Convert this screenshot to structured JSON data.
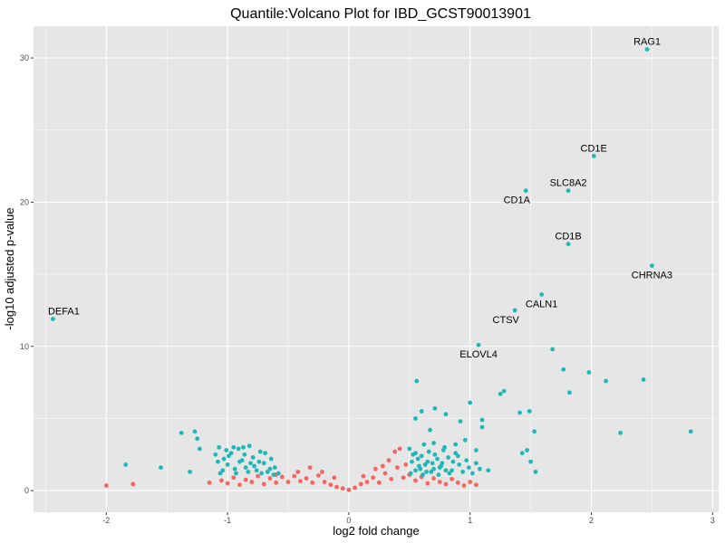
{
  "chart_data": {
    "type": "scatter",
    "title": "Quantile:Volcano Plot for IBD_GCST90013901",
    "xlabel": "log2 fold change",
    "ylabel": "-log10 adjusted p-value",
    "xlim": [
      -2.6,
      3.05
    ],
    "ylim": [
      -1.5,
      32.2
    ],
    "x_ticks": [
      -2,
      -1,
      0,
      1,
      2,
      3
    ],
    "y_ticks": [
      0,
      10,
      20,
      30
    ],
    "grid": true,
    "legend": "none",
    "colors": {
      "significant": "#1fb8b8",
      "not_significant": "#f8645e",
      "panel": "#e6e6e6",
      "grid": "#ffffff"
    },
    "series": [
      {
        "group": "significant",
        "points": [
          [
            2.46,
            30.6
          ],
          [
            2.02,
            23.2
          ],
          [
            1.46,
            20.8
          ],
          [
            1.81,
            20.8
          ],
          [
            1.81,
            17.1
          ],
          [
            2.5,
            15.6
          ],
          [
            1.59,
            13.6
          ],
          [
            1.37,
            12.5
          ],
          [
            1.07,
            10.1
          ],
          [
            -2.44,
            11.9
          ],
          [
            1.68,
            9.8
          ],
          [
            1.77,
            8.4
          ],
          [
            1.98,
            8.2
          ],
          [
            2.12,
            7.6
          ],
          [
            2.43,
            7.7
          ],
          [
            1.82,
            6.8
          ],
          [
            0.56,
            7.6
          ],
          [
            1.28,
            6.9
          ],
          [
            1.25,
            6.7
          ],
          [
            1.0,
            6.1
          ],
          [
            0.8,
            5.3
          ],
          [
            0.71,
            5.7
          ],
          [
            1.41,
            5.4
          ],
          [
            1.49,
            5.5
          ],
          [
            2.82,
            4.1
          ],
          [
            2.24,
            4.0
          ],
          [
            -1.38,
            4.0
          ],
          [
            -1.27,
            4.1
          ],
          [
            -1.25,
            3.6
          ],
          [
            -1.23,
            2.9
          ],
          [
            -1.84,
            1.8
          ],
          [
            -1.55,
            1.6
          ],
          [
            -1.31,
            1.3
          ],
          [
            1.53,
            4.1
          ],
          [
            1.43,
            2.6
          ],
          [
            1.47,
            2.8
          ],
          [
            1.5,
            2.0
          ],
          [
            1.54,
            1.3
          ],
          [
            1.15,
            1.4
          ],
          [
            1.1,
            4.9
          ],
          [
            1.1,
            4.4
          ],
          [
            0.92,
            4.8
          ],
          [
            0.67,
            4.2
          ],
          [
            0.6,
            5.5
          ],
          [
            0.55,
            5.0
          ],
          [
            0.88,
            3.2
          ],
          [
            0.96,
            3.5
          ],
          [
            1.05,
            2.8
          ],
          [
            0.5,
            2.9
          ],
          [
            0.52,
            2.0
          ],
          [
            0.55,
            1.4
          ],
          [
            0.6,
            2.4
          ],
          [
            0.63,
            1.8
          ],
          [
            0.66,
            2.7
          ],
          [
            0.7,
            1.5
          ],
          [
            0.73,
            2.2
          ],
          [
            0.76,
            1.7
          ],
          [
            0.79,
            3.0
          ],
          [
            0.82,
            2.3
          ],
          [
            0.85,
            1.4
          ],
          [
            0.88,
            2.6
          ],
          [
            0.91,
            1.8
          ],
          [
            0.94,
            1.3
          ],
          [
            0.97,
            2.1
          ],
          [
            0.99,
            1.6
          ],
          [
            1.02,
            1.2
          ],
          [
            1.05,
            1.9
          ],
          [
            1.08,
            1.5
          ],
          [
            0.51,
            1.2
          ],
          [
            0.53,
            2.5
          ],
          [
            0.58,
            1.7
          ],
          [
            0.61,
            1.1
          ],
          [
            0.65,
            2.0
          ],
          [
            0.68,
            1.3
          ],
          [
            0.71,
            2.5
          ],
          [
            0.74,
            1.1
          ],
          [
            0.77,
            1.9
          ],
          [
            0.8,
            1.4
          ],
          [
            0.57,
            2.2
          ],
          [
            0.62,
            3.2
          ],
          [
            0.7,
            3.3
          ],
          [
            0.78,
            2.8
          ],
          [
            0.59,
            1.5
          ],
          [
            0.64,
            1.3
          ],
          [
            0.69,
            1.9
          ],
          [
            0.75,
            1.6
          ],
          [
            0.83,
            1.2
          ],
          [
            0.86,
            2.0
          ],
          [
            0.9,
            2.4
          ],
          [
            0.55,
            2.6
          ],
          [
            -1.1,
            2.5
          ],
          [
            -1.07,
            3.0
          ],
          [
            -1.03,
            2.2
          ],
          [
            -1.0,
            1.8
          ],
          [
            -0.97,
            2.6
          ],
          [
            -0.94,
            1.5
          ],
          [
            -0.91,
            2.9
          ],
          [
            -0.88,
            2.1
          ],
          [
            -0.85,
            1.6
          ],
          [
            -0.82,
            3.1
          ],
          [
            -0.79,
            2.3
          ],
          [
            -0.76,
            1.4
          ],
          [
            -0.73,
            2.7
          ],
          [
            -0.7,
            1.9
          ],
          [
            -0.67,
            1.3
          ],
          [
            -0.64,
            2.2
          ],
          [
            -0.61,
            1.6
          ],
          [
            -0.58,
            1.2
          ],
          [
            -1.08,
            2.0
          ],
          [
            -1.04,
            1.4
          ],
          [
            -0.99,
            2.4
          ],
          [
            -0.95,
            3.0
          ],
          [
            -0.9,
            2.0
          ],
          [
            -0.86,
            2.5
          ],
          [
            -0.83,
            1.3
          ],
          [
            -0.78,
            1.7
          ],
          [
            -0.74,
            2.0
          ],
          [
            -0.69,
            2.6
          ],
          [
            -0.65,
            1.5
          ],
          [
            -0.62,
            1.1
          ],
          [
            -1.06,
            1.2
          ],
          [
            -1.01,
            2.8
          ],
          [
            -0.93,
            1.2
          ],
          [
            -0.87,
            3.0
          ],
          [
            -0.81,
            1.9
          ],
          [
            -0.72,
            1.2
          ]
        ]
      },
      {
        "group": "not_significant",
        "points": [
          [
            -2.0,
            0.35
          ],
          [
            -1.78,
            0.45
          ],
          [
            -1.15,
            0.55
          ],
          [
            -1.05,
            0.7
          ],
          [
            -1.0,
            0.5
          ],
          [
            -0.95,
            0.9
          ],
          [
            -0.9,
            0.4
          ],
          [
            -0.85,
            0.75
          ],
          [
            -0.8,
            0.6
          ],
          [
            -0.75,
            1.0
          ],
          [
            -0.7,
            0.45
          ],
          [
            -0.65,
            0.85
          ],
          [
            -0.6,
            0.55
          ],
          [
            -0.55,
            0.95
          ],
          [
            -0.5,
            0.6
          ],
          [
            -0.45,
            1.0
          ],
          [
            -0.4,
            0.65
          ],
          [
            -0.35,
            0.85
          ],
          [
            -0.3,
            0.55
          ],
          [
            -0.25,
            1.05
          ],
          [
            -0.2,
            0.6
          ],
          [
            -0.15,
            0.4
          ],
          [
            -0.1,
            0.25
          ],
          [
            -0.05,
            0.15
          ],
          [
            0.0,
            0.05
          ],
          [
            0.05,
            0.2
          ],
          [
            0.1,
            0.45
          ],
          [
            0.15,
            0.6
          ],
          [
            0.2,
            0.9
          ],
          [
            0.25,
            0.55
          ],
          [
            0.3,
            1.2
          ],
          [
            0.35,
            0.8
          ],
          [
            0.4,
            1.6
          ],
          [
            0.45,
            0.9
          ],
          [
            0.5,
            1.1
          ],
          [
            0.55,
            0.7
          ],
          [
            0.6,
            0.95
          ],
          [
            0.65,
            0.5
          ],
          [
            0.7,
            0.85
          ],
          [
            0.75,
            0.6
          ],
          [
            0.8,
            0.45
          ],
          [
            0.85,
            0.8
          ],
          [
            0.9,
            0.55
          ],
          [
            0.95,
            0.35
          ],
          [
            1.0,
            0.6
          ],
          [
            1.05,
            0.4
          ],
          [
            -0.32,
            1.6
          ],
          [
            -0.22,
            1.3
          ],
          [
            0.28,
            1.7
          ],
          [
            0.38,
            2.7
          ],
          [
            0.42,
            2.9
          ],
          [
            0.33,
            2.1
          ],
          [
            0.22,
            1.5
          ],
          [
            -0.12,
            0.9
          ],
          [
            0.12,
            1.0
          ],
          [
            -0.42,
            1.3
          ],
          [
            0.47,
            1.8
          ],
          [
            -0.6,
            1.1
          ]
        ]
      }
    ],
    "annotations": [
      {
        "text": "RAG1",
        "x": 2.46,
        "y": 30.6,
        "pos": "above"
      },
      {
        "text": "CD1E",
        "x": 2.02,
        "y": 23.2,
        "pos": "above"
      },
      {
        "text": "SLC8A2",
        "x": 1.81,
        "y": 20.8,
        "pos": "above"
      },
      {
        "text": "CD1A",
        "x": 1.46,
        "y": 20.8,
        "pos": "below-left"
      },
      {
        "text": "CD1B",
        "x": 1.81,
        "y": 17.1,
        "pos": "above"
      },
      {
        "text": "CHRNA3",
        "x": 2.5,
        "y": 15.6,
        "pos": "below"
      },
      {
        "text": "CALN1",
        "x": 1.59,
        "y": 13.6,
        "pos": "below"
      },
      {
        "text": "CTSV",
        "x": 1.37,
        "y": 12.5,
        "pos": "below-left"
      },
      {
        "text": "ELOVL4",
        "x": 1.07,
        "y": 10.1,
        "pos": "below"
      },
      {
        "text": "DEFA1",
        "x": -2.44,
        "y": 11.9,
        "pos": "above-right"
      }
    ]
  }
}
